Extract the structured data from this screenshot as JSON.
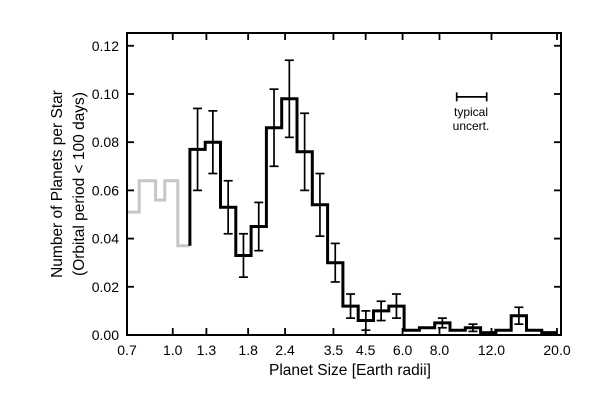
{
  "figure": {
    "x_axis_title": "Planet Size [Earth radii]",
    "y_axis_title_line1": "Number of Planets per Star",
    "y_axis_title_line2": "(Orbital period < 100 days)",
    "annotation_line1": "typical",
    "annotation_line2": "uncert."
  },
  "chart_data": {
    "type": "bar",
    "subtype": "step-histogram",
    "title": "",
    "xlabel": "Planet Size [Earth radii]",
    "ylabel_lines": [
      "Number of Planets per Star",
      "(Orbital period < 100 days)"
    ],
    "x_scale": "log",
    "xlim": [
      0.7,
      20.0
    ],
    "ylim": [
      0,
      0.1253
    ],
    "grid": false,
    "legend": false,
    "x_ticks": [
      0.7,
      1.0,
      1.3,
      1.8,
      2.4,
      3.5,
      4.5,
      6.0,
      8.0,
      12.0,
      20.0
    ],
    "x_tick_labels": [
      "0.7",
      "1.0",
      "1.3",
      "1.8",
      "2.4",
      "3.5",
      "4.5",
      "6.0",
      "8.0",
      "12.0",
      "20.0"
    ],
    "y_ticks": [
      0.0,
      0.02,
      0.04,
      0.06,
      0.08,
      0.1,
      0.12
    ],
    "y_tick_labels": [
      "0.00",
      "0.02",
      "0.04",
      "0.06",
      "0.08",
      "0.10",
      "0.12"
    ],
    "series": [
      {
        "name": "low-completeness-region",
        "color": "#c6c6c6",
        "line_width": 3,
        "bin_edges": [
          0.7,
          0.77,
          0.875,
          0.94,
          1.04,
          1.143
        ],
        "values": [
          0.051,
          0.064,
          0.056,
          0.064,
          0.037
        ],
        "errors": [
          0,
          0,
          0,
          0,
          0
        ]
      },
      {
        "name": "planet-occurrence",
        "color": "#000000",
        "line_width": 3,
        "start_level": 0.037,
        "bin_edges": [
          1.143,
          1.288,
          1.451,
          1.635,
          1.842,
          2.075,
          2.338,
          2.634,
          2.968,
          3.344,
          3.768,
          4.245,
          4.783,
          5.389,
          6.072,
          6.841,
          7.708,
          8.685,
          9.785,
          11.025,
          12.422,
          13.996,
          15.769,
          17.767,
          20.0
        ],
        "values": [
          0.077,
          0.08,
          0.053,
          0.033,
          0.045,
          0.086,
          0.098,
          0.076,
          0.054,
          0.03,
          0.012,
          0.006,
          0.01,
          0.012,
          0.002,
          0.003,
          0.005,
          0.002,
          0.003,
          0.001,
          0.002,
          0.008,
          0.002,
          0.001
        ],
        "errors": [
          0.017,
          0.013,
          0.011,
          0.009,
          0.01,
          0.016,
          0.016,
          0.016,
          0.013,
          0.008,
          0.005,
          0.004,
          0.004,
          0.005,
          0,
          0,
          0.002,
          0,
          0.0015,
          0,
          0,
          0.0035,
          0,
          0
        ]
      }
    ],
    "annotation": {
      "line1": "typical",
      "line2": "uncert.",
      "bar_x_from": 9.15,
      "bar_x_to": 11.56,
      "bar_y_value": 0.0988
    }
  }
}
